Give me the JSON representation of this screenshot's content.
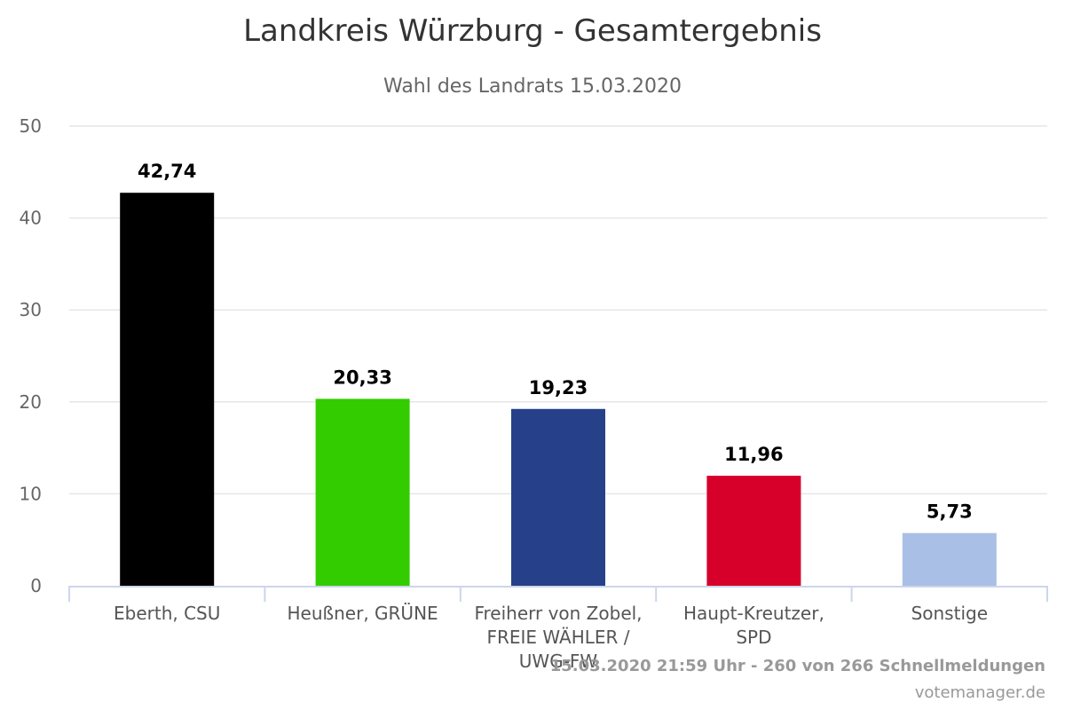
{
  "chart_data": {
    "type": "bar",
    "title": "Landkreis Würzburg - Gesamtergebnis",
    "subtitle": "Wahl des Landrats 15.03.2020",
    "categories": [
      [
        "Eberth, CSU"
      ],
      [
        "Heußner, GRÜNE"
      ],
      [
        "Freiherr von Zobel,",
        "FREIE WÄHLER /",
        "UWG-FW"
      ],
      [
        "Haupt-Kreutzer,",
        "SPD"
      ],
      [
        "Sonstige"
      ]
    ],
    "values": [
      42.74,
      20.33,
      19.23,
      11.96,
      5.73
    ],
    "value_labels": [
      "42,74",
      "20,33",
      "19,23",
      "11,96",
      "5,73"
    ],
    "colors": [
      "#000000",
      "#33cc00",
      "#26418a",
      "#d6002a",
      "#aabfe6"
    ],
    "ylim": [
      0,
      50
    ],
    "yticks": [
      "0",
      "10",
      "20",
      "30",
      "40",
      "50"
    ],
    "grid": true,
    "legend": false
  },
  "footer": {
    "status": "15.03.2020 21:59 Uhr - 260 von 266 Schnellmeldungen",
    "source": "votemanager.de"
  }
}
